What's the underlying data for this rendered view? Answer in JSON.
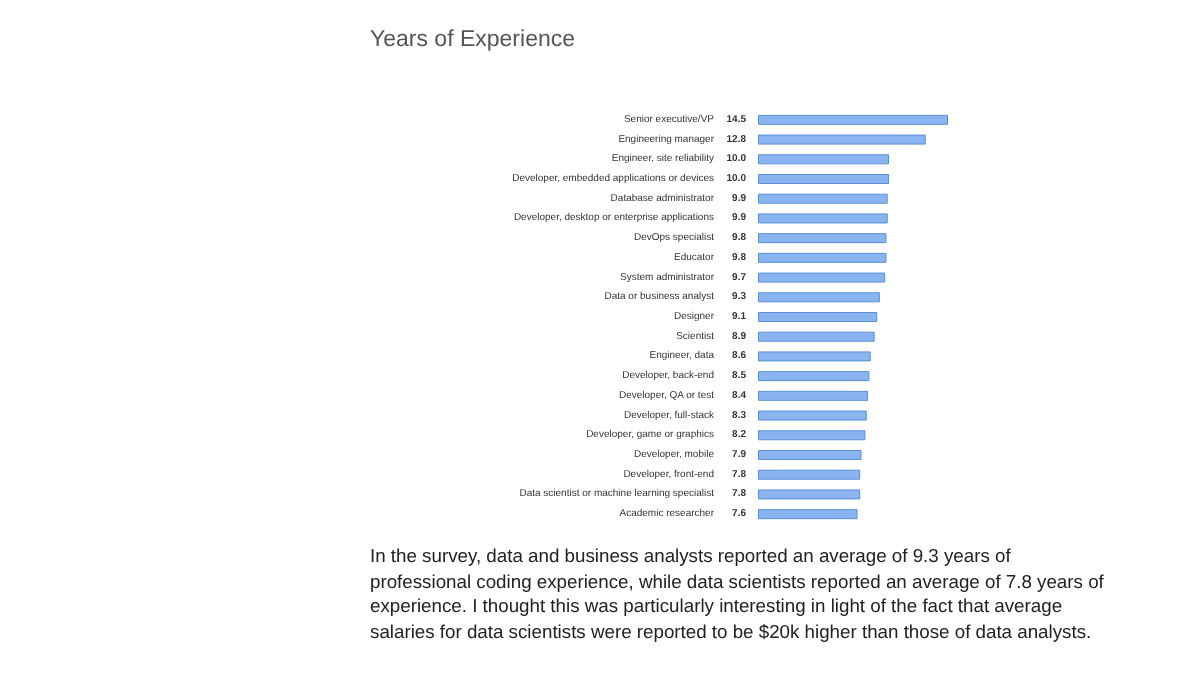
{
  "chart_data": {
    "type": "bar",
    "orientation": "horizontal",
    "title": "Years of Experience",
    "categories": [
      "Senior executive/VP",
      "Engineering manager",
      "Engineer, site reliability",
      "Developer, embedded applications or devices",
      "Database administrator",
      "Developer, desktop or enterprise applications",
      "DevOps specialist",
      "Educator",
      "System administrator",
      "Data or business analyst",
      "Designer",
      "Scientist",
      "Engineer, data",
      "Developer, back-end",
      "Developer, QA or test",
      "Developer, full-stack",
      "Developer, game or graphics",
      "Developer, mobile",
      "Developer, front-end",
      "Data scientist or machine learning specialist",
      "Academic researcher"
    ],
    "values": [
      14.5,
      12.8,
      10.0,
      10.0,
      9.9,
      9.9,
      9.8,
      9.8,
      9.7,
      9.3,
      9.1,
      8.9,
      8.6,
      8.5,
      8.4,
      8.3,
      8.2,
      7.9,
      7.8,
      7.8,
      7.6
    ],
    "value_labels": [
      "14.5",
      "12.8",
      "10.0",
      "10.0",
      "9.9",
      "9.9",
      "9.8",
      "9.8",
      "9.7",
      "9.3",
      "9.1",
      "8.9",
      "8.6",
      "8.5",
      "8.4",
      "8.3",
      "8.2",
      "7.9",
      "7.8",
      "7.8",
      "7.6"
    ],
    "color": "#8ab4f0",
    "annotations": [
      "In the survey, data and business analysts reported an average of 9.3 years of professional coding experience, while data scientists reported an average of 7.8 years of experience. I thought this was particularly interesting in light of the fact that average salaries for data scientists were reported to be $20k higher than those of data analysts."
    ]
  }
}
